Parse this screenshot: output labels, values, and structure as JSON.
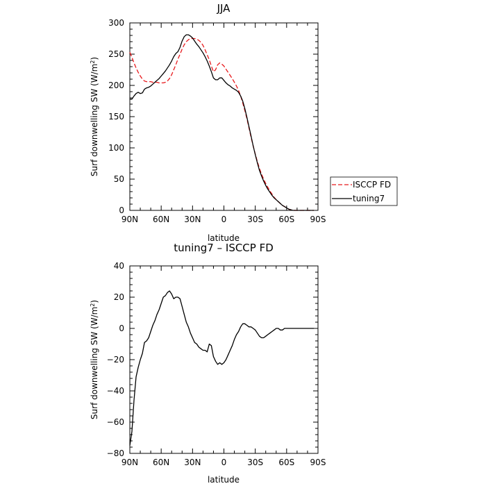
{
  "chart_data": [
    {
      "type": "line",
      "title": "JJA",
      "xlabel": "latitude",
      "ylabel": "Surf downwelling SW (W/m²)",
      "ylabel_main": "Surf downwelling SW (W/m",
      "ylabel_sup": "2",
      "ylabel_end": ")",
      "xlim": [
        90,
        -90
      ],
      "ylim": [
        0,
        300
      ],
      "x_ticks": [
        90,
        60,
        30,
        0,
        -30,
        -60,
        -90
      ],
      "x_tick_labels": [
        "90N",
        "60N",
        "30N",
        "0",
        "30S",
        "60S",
        "90S"
      ],
      "y_ticks": [
        0,
        50,
        100,
        150,
        200,
        250,
        300
      ],
      "y_tick_labels": [
        "0",
        "50",
        "100",
        "150",
        "200",
        "250",
        "300"
      ],
      "legend_position": "outside-right",
      "series": [
        {
          "name": "ISCCP FD",
          "color": "#e8191c",
          "dash": "dashed",
          "x": [
            90,
            88,
            86,
            84,
            82,
            80,
            78,
            76,
            74,
            72,
            70,
            68,
            66,
            64,
            62,
            60,
            58,
            56,
            54,
            52,
            50,
            48,
            46,
            44,
            42,
            40,
            38,
            36,
            34,
            32,
            30,
            28,
            26,
            24,
            22,
            20,
            18,
            16,
            14,
            12,
            10,
            8,
            6,
            4,
            2,
            0,
            -2,
            -4,
            -6,
            -8,
            -10,
            -12,
            -14,
            -16,
            -18,
            -20,
            -22,
            -24,
            -26,
            -28,
            -30,
            -32,
            -34,
            -36,
            -38,
            -40,
            -42,
            -44,
            -46,
            -48,
            -50,
            -52,
            -54,
            -56,
            -58,
            -60,
            -62,
            -64,
            -66,
            -68,
            -70,
            -72,
            -74,
            -76,
            -78,
            -80,
            -82,
            -84,
            -86
          ],
          "y": [
            253,
            245,
            236,
            228,
            221,
            215,
            210,
            207,
            206,
            206,
            206,
            205,
            205,
            205,
            204,
            204,
            204,
            205,
            207,
            211,
            217,
            225,
            233,
            242,
            250,
            258,
            265,
            270,
            273,
            275,
            275,
            275,
            274,
            272,
            269,
            264,
            257,
            249,
            241,
            231,
            222,
            225,
            233,
            236,
            234,
            231,
            226,
            221,
            216,
            211,
            205,
            199,
            192,
            183,
            172,
            160,
            147,
            132,
            117,
            103,
            90,
            78,
            67,
            58,
            50,
            43,
            37,
            31,
            26,
            21,
            17,
            14,
            11,
            8,
            6,
            4,
            2,
            1,
            0,
            0,
            0,
            0,
            0,
            0,
            0,
            0,
            0,
            0,
            0
          ]
        },
        {
          "name": "tuning7",
          "color": "#000000",
          "dash": "solid",
          "x": [
            90,
            88,
            86,
            84,
            82,
            80,
            78,
            76,
            74,
            72,
            70,
            68,
            66,
            64,
            62,
            60,
            58,
            56,
            54,
            52,
            50,
            48,
            46,
            44,
            42,
            40,
            38,
            36,
            34,
            32,
            30,
            28,
            26,
            24,
            22,
            20,
            18,
            16,
            14,
            12,
            10,
            8,
            6,
            4,
            2,
            0,
            -2,
            -4,
            -6,
            -8,
            -10,
            -12,
            -14,
            -16,
            -18,
            -20,
            -22,
            -24,
            -26,
            -28,
            -30,
            -32,
            -34,
            -36,
            -38,
            -40,
            -42,
            -44,
            -46,
            -48,
            -50,
            -52,
            -54,
            -56,
            -58,
            -60,
            -62,
            -64,
            -66,
            -68,
            -70,
            -72,
            -74,
            -76,
            -78,
            -80,
            -82,
            -84,
            -86
          ],
          "y": [
            178,
            178,
            183,
            187,
            189,
            187,
            188,
            194,
            196,
            197,
            199,
            202,
            205,
            208,
            211,
            215,
            219,
            223,
            228,
            233,
            239,
            246,
            251,
            254,
            261,
            271,
            278,
            281,
            281,
            279,
            276,
            271,
            266,
            262,
            257,
            252,
            246,
            239,
            231,
            222,
            212,
            209,
            209,
            212,
            212,
            208,
            204,
            201,
            199,
            196,
            194,
            192,
            189,
            183,
            175,
            163,
            149,
            134,
            119,
            103,
            89,
            76,
            64,
            55,
            47,
            40,
            34,
            29,
            24,
            20,
            17,
            14,
            11,
            8,
            6,
            4,
            2,
            1,
            0,
            0,
            0,
            0,
            0,
            0,
            0,
            0,
            0,
            0,
            0
          ]
        }
      ]
    },
    {
      "type": "line",
      "title": "tuning7 – ISCCP FD",
      "xlabel": "latitude",
      "ylabel": "Surf downwelling SW (W/m²)",
      "ylabel_main": "Surf downwelling SW (W/m",
      "ylabel_sup": "2",
      "ylabel_end": ")",
      "xlim": [
        90,
        -90
      ],
      "ylim": [
        -80,
        40
      ],
      "x_ticks": [
        90,
        60,
        30,
        0,
        -30,
        -60,
        -90
      ],
      "x_tick_labels": [
        "90N",
        "60N",
        "30N",
        "0",
        "30S",
        "60S",
        "90S"
      ],
      "y_ticks": [
        -80,
        -60,
        -40,
        -20,
        0,
        20,
        40
      ],
      "y_tick_labels": [
        "−80",
        "−60",
        "−40",
        "−20",
        "0",
        "20",
        "40"
      ],
      "series": [
        {
          "name": "",
          "color": "#000000",
          "dash": "solid",
          "x": [
            90,
            88,
            86,
            84,
            82,
            80,
            78,
            76,
            74,
            72,
            70,
            68,
            66,
            64,
            62,
            60,
            58,
            56,
            54,
            52,
            50,
            48,
            46,
            44,
            42,
            40,
            38,
            36,
            34,
            32,
            30,
            28,
            26,
            24,
            22,
            20,
            18,
            16,
            14,
            12,
            10,
            8,
            6,
            4,
            2,
            0,
            -2,
            -4,
            -6,
            -8,
            -10,
            -12,
            -14,
            -16,
            -18,
            -20,
            -22,
            -24,
            -26,
            -28,
            -30,
            -32,
            -34,
            -36,
            -38,
            -40,
            -42,
            -44,
            -46,
            -48,
            -50,
            -52,
            -54,
            -56,
            -58,
            -60,
            -62,
            -64,
            -66,
            -68,
            -70,
            -72,
            -74,
            -76,
            -78,
            -80,
            -82,
            -84,
            -86
          ],
          "y": [
            -75,
            -66,
            -46,
            -31,
            -25,
            -20,
            -16,
            -9,
            -8,
            -6,
            -2,
            2,
            5,
            9,
            12,
            16,
            20,
            21,
            23,
            24,
            22,
            19,
            20,
            20,
            19,
            14,
            9,
            4,
            1,
            -3,
            -6,
            -9,
            -10,
            -12,
            -13,
            -14,
            -14,
            -15,
            -10,
            -11,
            -18,
            -21,
            -23,
            -22,
            -23,
            -22,
            -20,
            -17,
            -14,
            -11,
            -7,
            -4,
            -2,
            1,
            3,
            3,
            2,
            1,
            1,
            0,
            -1,
            -3,
            -5,
            -6,
            -6,
            -5,
            -4,
            -3,
            -2,
            -1,
            0,
            0,
            -1,
            -1,
            0,
            0,
            0,
            0,
            0,
            0,
            0,
            0,
            0,
            0,
            0,
            0,
            0,
            0,
            0
          ]
        }
      ]
    }
  ]
}
